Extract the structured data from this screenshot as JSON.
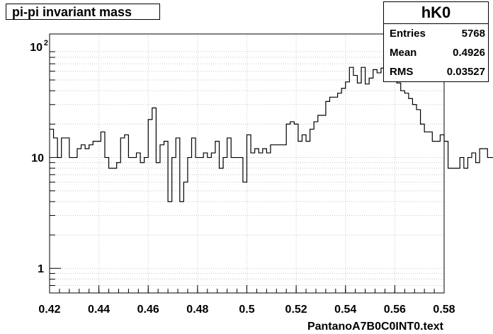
{
  "title": "pi-pi invariant mass",
  "stats": {
    "name": "hK0",
    "rows": [
      {
        "label": "Entries",
        "value": "5768"
      },
      {
        "label": "Mean",
        "value": "0.4926"
      },
      {
        "label": "RMS",
        "value": "0.03527"
      }
    ]
  },
  "chart_data": {
    "type": "histogram",
    "title": "pi-pi invariant mass",
    "xlabel": "PantanoA7B0C0INT0.text",
    "ylabel": "",
    "xlim": [
      0.42,
      0.58
    ],
    "ylim": [
      0.6,
      130
    ],
    "yscale": "log",
    "grid": true,
    "bin_width": 0.0016,
    "x_ticks": [
      "0.42",
      "0.44",
      "0.46",
      "0.48",
      "0.5",
      "0.52",
      "0.54",
      "0.56",
      "0.58"
    ],
    "x_tick_values": [
      0.42,
      0.44,
      0.46,
      0.48,
      0.5,
      0.52,
      0.54,
      0.56,
      0.58
    ],
    "y_ticks": [
      {
        "value": 1,
        "base": "1",
        "exp": ""
      },
      {
        "value": 10,
        "base": "10",
        "exp": ""
      },
      {
        "value": 100,
        "base": "10",
        "exp": "2"
      }
    ],
    "values": [
      18,
      15,
      10,
      15,
      15,
      10,
      10,
      12,
      13,
      12,
      13,
      14,
      14,
      17,
      10,
      8,
      8,
      9,
      15,
      16,
      10,
      10,
      11,
      9,
      10,
      22,
      28,
      9,
      13,
      14,
      4,
      10,
      15,
      4,
      6,
      10,
      15,
      10,
      10,
      11,
      10,
      11,
      14,
      8,
      10,
      15,
      10,
      10,
      10,
      6,
      16,
      11,
      12,
      11,
      12,
      11,
      13,
      13,
      13,
      13,
      20,
      21,
      20,
      14,
      16,
      14,
      18,
      21,
      24,
      24,
      32,
      35,
      35,
      38,
      42,
      48,
      65,
      55,
      47,
      65,
      46,
      52,
      62,
      58,
      64,
      66,
      62,
      58,
      47,
      40,
      38,
      34,
      30,
      27,
      20,
      17,
      17,
      14,
      14,
      16,
      14,
      8,
      8,
      8,
      10,
      8,
      10,
      11,
      9,
      12,
      12,
      10,
      10,
      10,
      10,
      9,
      9,
      6,
      9,
      6,
      10,
      6,
      11,
      8,
      6,
      7,
      6,
      10,
      13,
      12,
      10,
      8,
      3,
      6,
      6,
      6,
      6,
      6,
      6,
      9,
      6,
      10,
      6,
      7,
      8,
      3,
      8,
      7,
      6,
      10,
      10,
      11,
      11,
      11,
      12,
      12,
      11,
      7,
      7,
      7,
      6,
      7,
      6,
      6,
      5,
      4,
      3,
      5,
      6,
      7,
      8,
      6,
      5,
      10,
      9,
      9,
      7,
      7,
      6,
      5,
      7,
      8,
      5,
      6,
      4,
      4
    ]
  }
}
